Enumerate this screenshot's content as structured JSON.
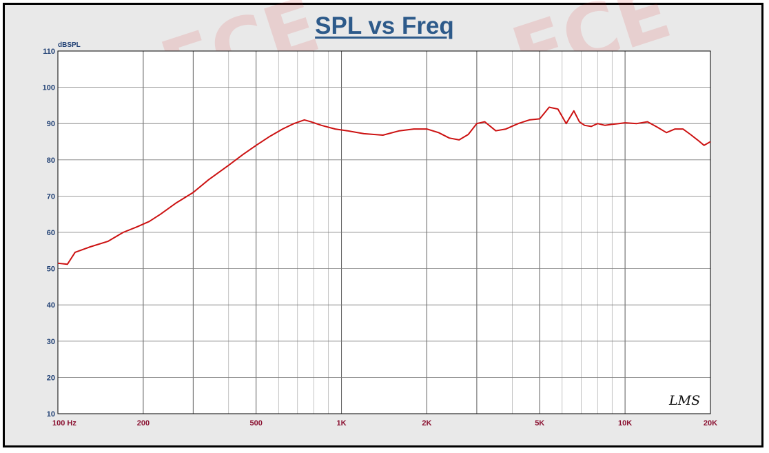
{
  "title": "SPL vs Freq",
  "chart_data": {
    "type": "line",
    "title": "SPL vs Freq",
    "ylabel": "dBSPL",
    "xlabel": "",
    "x_scale": "log",
    "xlim": [
      100,
      20000
    ],
    "ylim": [
      10,
      110
    ],
    "grid": true,
    "x_tick_values": [
      100,
      200,
      500,
      1000,
      2000,
      5000,
      10000,
      20000
    ],
    "x_tick_labels": [
      "100  Hz",
      "200",
      "500",
      "1K",
      "2K",
      "5K",
      "10K",
      "20K"
    ],
    "y_tick_values": [
      10,
      20,
      30,
      40,
      50,
      60,
      70,
      80,
      90,
      100,
      110
    ],
    "y_tick_labels": [
      "10",
      "20",
      "30",
      "40",
      "50",
      "60",
      "70",
      "80",
      "90",
      "100",
      "110"
    ],
    "annotation": "LMS",
    "series_color": "#cc1111",
    "series": [
      {
        "x": [
          100,
          108,
          115,
          130,
          150,
          170,
          190,
          210,
          230,
          260,
          300,
          340,
          400,
          450,
          500,
          560,
          620,
          680,
          740,
          780,
          850,
          950,
          1050,
          1200,
          1400,
          1600,
          1800,
          2000,
          2200,
          2400,
          2600,
          2800,
          3000,
          3200,
          3500,
          3800,
          4200,
          4600,
          5000,
          5400,
          5800,
          6200,
          6600,
          6900,
          7200,
          7600,
          8000,
          8500,
          9000,
          9500,
          10000,
          11000,
          12000,
          13000,
          14000,
          15000,
          16000,
          17000,
          18000,
          19000,
          20000
        ],
        "y": [
          51.5,
          51.2,
          54.5,
          56,
          57.5,
          60,
          61.5,
          63,
          65,
          68,
          71,
          74.5,
          78.5,
          81.5,
          84,
          86.5,
          88.5,
          90,
          91,
          90.5,
          89.5,
          88.5,
          88,
          87.2,
          86.8,
          88,
          88.5,
          88.5,
          87.5,
          86,
          85.5,
          87,
          90,
          90.5,
          88,
          88.5,
          90,
          91,
          91.3,
          94.5,
          94,
          90,
          93.5,
          90.5,
          89.5,
          89.2,
          90,
          89.5,
          89.8,
          90,
          90.2,
          90,
          90.5,
          89,
          87.5,
          88.5,
          88.5,
          87,
          85.5,
          84,
          85
        ]
      }
    ]
  }
}
